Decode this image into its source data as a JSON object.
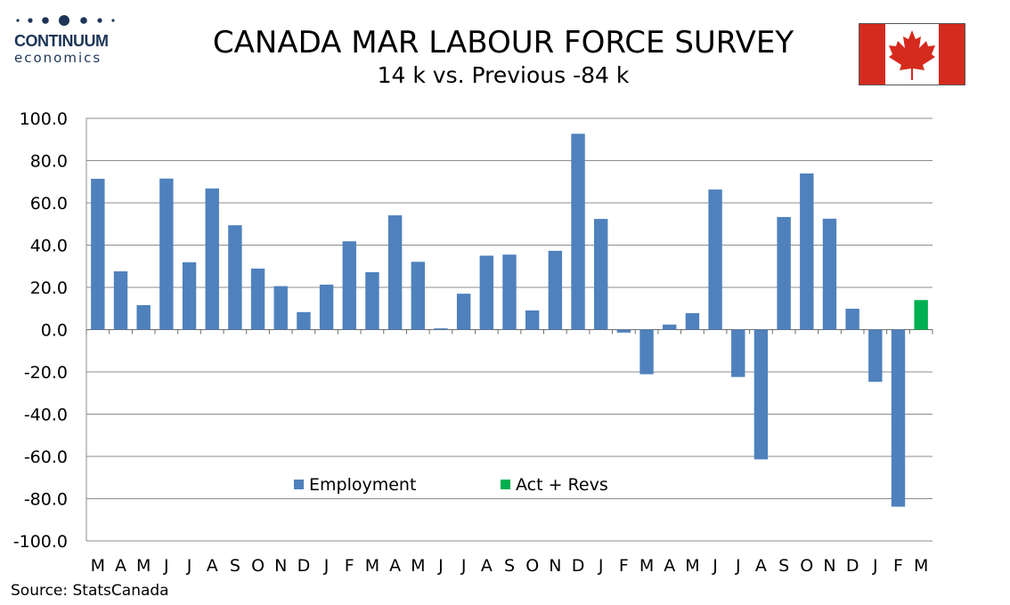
{
  "logo": {
    "name": "CONTINUUM",
    "sub": "economics",
    "color": "#1d3557"
  },
  "header": {
    "title": "CANADA MAR LABOUR FORCE SURVEY",
    "subtitle": "14 k vs.  Previous -84 k"
  },
  "flag": {
    "red": "#d52b1e",
    "white": "#ffffff",
    "icon": "maple-leaf-icon"
  },
  "chart_data": {
    "type": "bar",
    "title": "CANADA MAR LABOUR FORCE SURVEY",
    "subtitle": "14 k vs.  Previous -84 k",
    "xlabel": "",
    "ylabel": "",
    "ylim": [
      -100,
      100
    ],
    "yticks": [
      "100.0",
      "80.0",
      "60.0",
      "40.0",
      "20.0",
      "0.0",
      "-20.0",
      "-40.0",
      "-60.0",
      "-80.0",
      "-100.0"
    ],
    "ytick_values": [
      100,
      80,
      60,
      40,
      20,
      0,
      -20,
      -40,
      -60,
      -80,
      -100
    ],
    "grid": true,
    "legend_position": "bottom-center",
    "categories": [
      "M",
      "A",
      "M",
      "J",
      "J",
      "A",
      "S",
      "O",
      "N",
      "D",
      "J",
      "F",
      "M",
      "A",
      "M",
      "J",
      "J",
      "A",
      "S",
      "O",
      "N",
      "D",
      "J",
      "F",
      "M",
      "A",
      "M",
      "J",
      "J",
      "A",
      "S",
      "O",
      "N",
      "D",
      "J",
      "F",
      "M"
    ],
    "series": [
      {
        "name": "Employment",
        "color": "#4f81bd",
        "values": [
          71.4,
          27.6,
          11.6,
          71.5,
          31.9,
          66.8,
          49.4,
          28.9,
          20.6,
          8.3,
          21.3,
          41.8,
          27.2,
          54.1,
          32.1,
          0.6,
          17.0,
          35.0,
          35.5,
          9.1,
          37.3,
          92.7,
          52.4,
          -1.4,
          -21.1,
          2.4,
          7.8,
          66.3,
          -22.4,
          -61.4,
          53.3,
          73.9,
          52.5,
          9.9,
          -24.7,
          -83.8,
          null
        ]
      },
      {
        "name": "Act + Revs",
        "color": "#00b050",
        "values": [
          null,
          null,
          null,
          null,
          null,
          null,
          null,
          null,
          null,
          null,
          null,
          null,
          null,
          null,
          null,
          null,
          null,
          null,
          null,
          null,
          null,
          null,
          null,
          null,
          null,
          null,
          null,
          null,
          null,
          null,
          null,
          null,
          null,
          null,
          null,
          null,
          14.0
        ]
      }
    ]
  },
  "source": "Source: StatsCanada"
}
